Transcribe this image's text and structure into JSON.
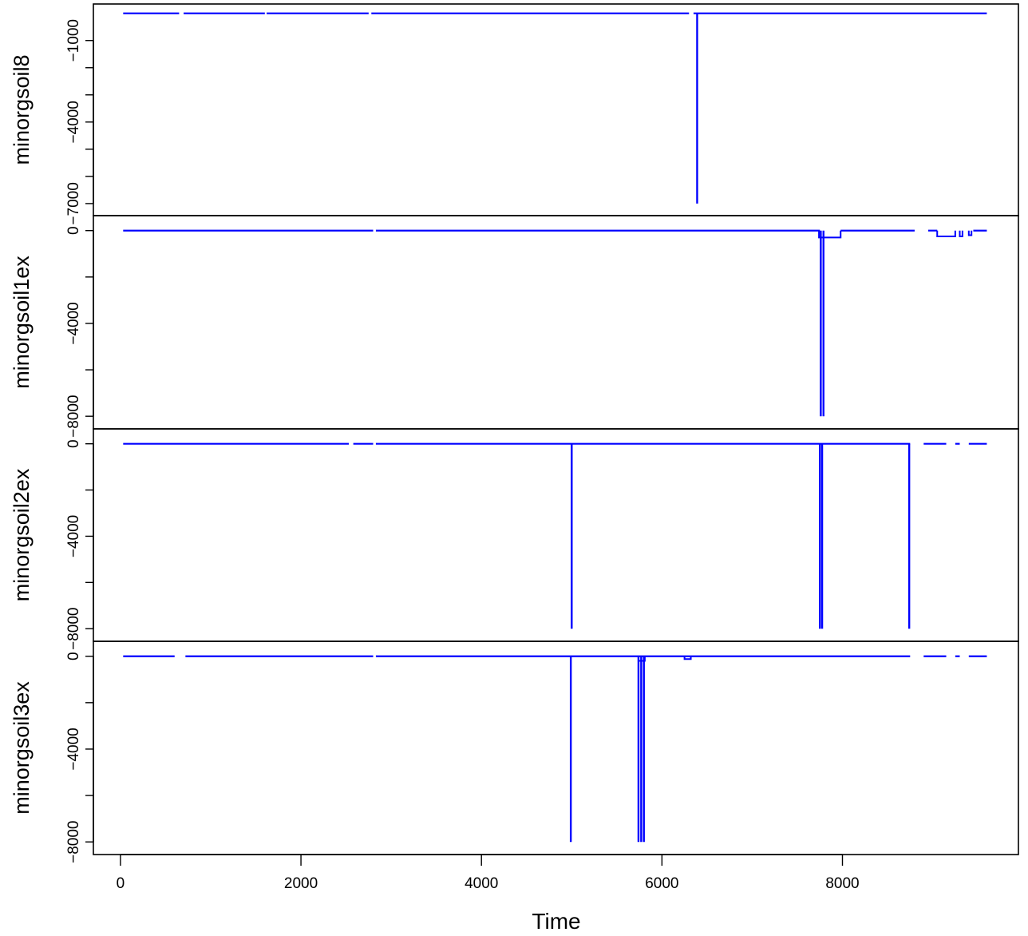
{
  "chart_data": {
    "type": "line",
    "xlabel": "Time",
    "xlim": [
      -300,
      9950
    ],
    "x_ticks": [
      0,
      2000,
      4000,
      6000,
      8000
    ],
    "x_tick_labels": [
      "0",
      "2000",
      "4000",
      "6000",
      "8000"
    ],
    "line_color": "#0000ff",
    "panels": [
      {
        "name": "minorgsoil8",
        "ylabel": "minorgsoil8",
        "ylim": [
          -7150,
          50
        ],
        "y_ticks": [
          -7000,
          -6000,
          -5000,
          -4000,
          -3000,
          -2000,
          -1000
        ],
        "y_tick_labels": [
          "−7000",
          "",
          "",
          "−4000",
          "",
          "",
          "−1000"
        ],
        "baseline": 0,
        "baseline_segments": [
          [
            30,
            650
          ],
          [
            700,
            1600
          ],
          [
            1620,
            2750
          ],
          [
            2780,
            6300
          ],
          [
            6350,
            9600
          ]
        ],
        "spikes": [
          {
            "x": 6390,
            "min": -7000
          }
        ],
        "steps": []
      },
      {
        "name": "minorgsoil1ex",
        "ylabel": "minorgsoil1ex",
        "ylim": [
          -8200,
          300
        ],
        "y_ticks": [
          -8000,
          -6000,
          -4000,
          -2000,
          0
        ],
        "y_tick_labels": [
          "−8000",
          "",
          "−4000",
          "",
          "0"
        ],
        "baseline": 0,
        "baseline_segments": [
          [
            30,
            2800
          ],
          [
            2830,
            7750
          ],
          [
            7980,
            8800
          ],
          [
            8950,
            9050
          ],
          [
            9450,
            9600
          ]
        ],
        "spikes": [
          {
            "x": 7760,
            "min": -8000
          },
          {
            "x": 7790,
            "min": -8000
          }
        ],
        "steps": [
          {
            "x1": 7740,
            "x2": 7980,
            "y": -300
          },
          {
            "x1": 9050,
            "x2": 9250,
            "y": -250
          },
          {
            "x1": 9300,
            "x2": 9330,
            "y": -250
          },
          {
            "x1": 9400,
            "x2": 9430,
            "y": -200
          }
        ]
      },
      {
        "name": "minorgsoil2ex",
        "ylabel": "minorgsoil2ex",
        "ylim": [
          -8200,
          300
        ],
        "y_ticks": [
          -8000,
          -6000,
          -4000,
          -2000,
          0
        ],
        "y_tick_labels": [
          "−8000",
          "",
          "−4000",
          "",
          "0"
        ],
        "baseline": 0,
        "baseline_segments": [
          [
            30,
            2530
          ],
          [
            2580,
            2800
          ],
          [
            2830,
            8750
          ],
          [
            8900,
            9150
          ],
          [
            9250,
            9300
          ],
          [
            9400,
            9600
          ]
        ],
        "spikes": [
          {
            "x": 5000,
            "min": -8000
          },
          {
            "x": 7750,
            "min": -8000
          },
          {
            "x": 7775,
            "min": -8000
          },
          {
            "x": 8740,
            "min": -8000
          }
        ],
        "steps": []
      },
      {
        "name": "minorgsoil3ex",
        "ylabel": "minorgsoil3ex",
        "ylim": [
          -8200,
          300
        ],
        "y_ticks": [
          -8000,
          -6000,
          -4000,
          -2000,
          0
        ],
        "y_tick_labels": [
          "−8000",
          "",
          "−4000",
          "",
          "0"
        ],
        "baseline": 0,
        "baseline_segments": [
          [
            30,
            600
          ],
          [
            720,
            2800
          ],
          [
            2830,
            8750
          ],
          [
            8900,
            9150
          ],
          [
            9250,
            9300
          ],
          [
            9400,
            9600
          ]
        ],
        "spikes": [
          {
            "x": 4990,
            "min": -8000
          },
          {
            "x": 5740,
            "min": -8000
          },
          {
            "x": 5770,
            "min": -8000
          },
          {
            "x": 5800,
            "min": -8000
          }
        ],
        "steps": [
          {
            "x1": 5740,
            "x2": 5810,
            "y": -200
          },
          {
            "x1": 6250,
            "x2": 6320,
            "y": -120
          }
        ]
      }
    ]
  }
}
